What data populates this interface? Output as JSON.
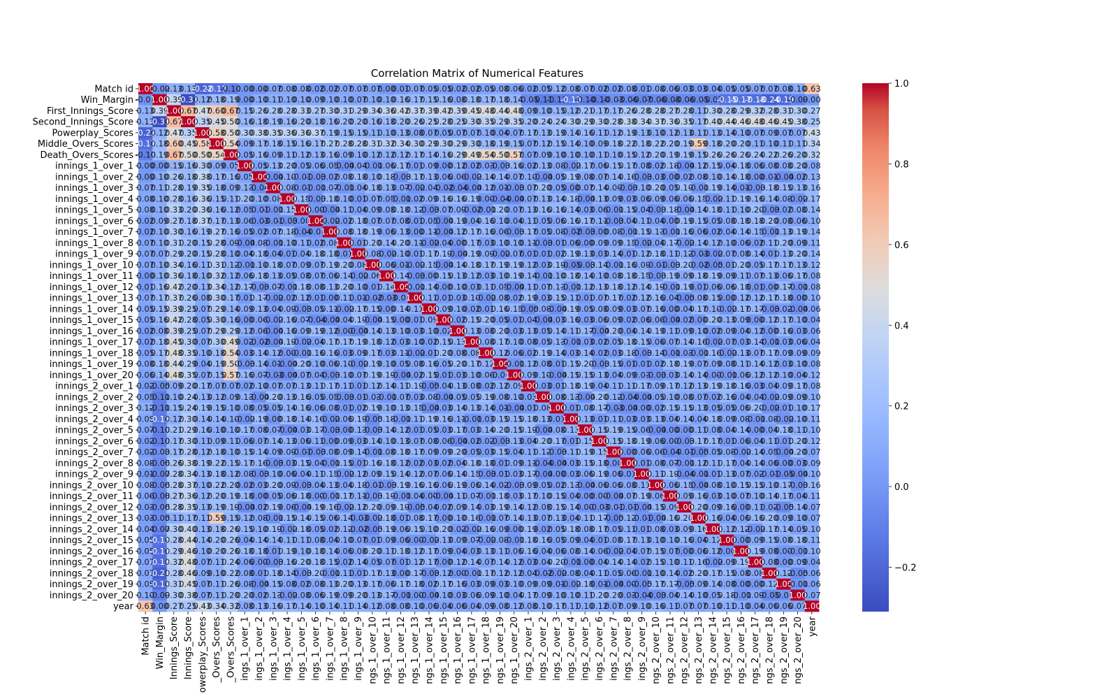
{
  "chart_data": {
    "type": "heatmap",
    "title": "Correlation Matrix of Numerical Features",
    "labels": [
      "Match id",
      "Win_Margin",
      "First_Innings_Score",
      "Second_Innings_Score",
      "Powerplay_Scores",
      "Middle_Overs_Scores",
      "Death_Overs_Scores",
      "innings_1_over_1",
      "innings_1_over_2",
      "innings_1_over_3",
      "innings_1_over_4",
      "innings_1_over_5",
      "innings_1_over_6",
      "innings_1_over_7",
      "innings_1_over_8",
      "innings_1_over_9",
      "innings_1_over_10",
      "innings_1_over_11",
      "innings_1_over_12",
      "innings_1_over_13",
      "innings_1_over_14",
      "innings_1_over_15",
      "innings_1_over_16",
      "innings_1_over_17",
      "innings_1_over_18",
      "innings_1_over_19",
      "innings_1_over_20",
      "innings_2_over_1",
      "innings_2_over_2",
      "innings_2_over_3",
      "innings_2_over_4",
      "innings_2_over_5",
      "innings_2_over_6",
      "innings_2_over_7",
      "innings_2_over_8",
      "innings_2_over_9",
      "innings_2_over_10",
      "innings_2_over_11",
      "innings_2_over_12",
      "innings_2_over_13",
      "innings_2_over_14",
      "innings_2_over_15",
      "innings_2_over_16",
      "innings_2_over_17",
      "innings_2_over_18",
      "innings_2_over_19",
      "innings_2_over_20",
      "year"
    ],
    "x_tick_labels": [
      "Match id",
      "Win_Margin",
      "Innings_Score",
      "Innings_Score",
      "owerplay_Scores",
      "_Overs_Scores",
      "_Overs_Scores",
      "ings_1_over_1",
      "ings_1_over_2",
      "ings_1_over_3",
      "ings_1_over_4",
      "ings_1_over_5",
      "ings_1_over_6",
      "ings_1_over_7",
      "ings_1_over_8",
      "ings_1_over_9",
      "ngs_1_over_10",
      "ngs_1_over_11",
      "ngs_1_over_12",
      "ngs_1_over_13",
      "ngs_1_over_14",
      "ngs_1_over_15",
      "ngs_1_over_16",
      "ngs_1_over_17",
      "ngs_1_over_18",
      "ngs_1_over_19",
      "ngs_1_over_20",
      "ings_2_over_1",
      "ings_2_over_2",
      "ings_2_over_3",
      "ings_2_over_4",
      "ings_2_over_5",
      "ings_2_over_6",
      "ings_2_over_7",
      "ings_2_over_8",
      "ings_2_over_9",
      "ngs_2_over_10",
      "ngs_2_over_11",
      "ngs_2_over_12",
      "ngs_2_over_13",
      "ngs_2_over_14",
      "ngs_2_over_15",
      "ngs_2_over_16",
      "ngs_2_over_17",
      "ngs_2_over_18",
      "ngs_2_over_19",
      "ngs_2_over_20",
      "year"
    ],
    "row_values": {
      "Match id": [
        1.0,
        -0.02,
        0.13,
        0.13,
        -0.22,
        -0.17,
        -0.1,
        0.0,
        -0.0,
        0.07,
        0.08,
        0.08,
        0.02,
        0.02,
        0.07,
        0.07,
        0.07,
        0.0,
        0.01,
        0.07,
        0.05,
        0.05,
        0.02,
        0.02,
        0.05,
        0.08,
        0.06,
        0.02,
        0.05,
        0.12,
        0.08,
        0.07,
        0.02,
        0.02,
        0.08,
        0.01,
        0.08,
        0.06,
        0.03,
        0.03,
        0.04,
        0.05,
        0.05,
        0.07,
        0.07,
        0.08,
        0.1,
        0.63
      ],
      "Win_Margin": [
        -0.02,
        1.0,
        0.39,
        -0.31,
        0.12,
        0.18,
        0.19,
        -0.0,
        0.1,
        0.11,
        0.1,
        0.1,
        0.09,
        0.1,
        0.1,
        0.07,
        0.1,
        0.1,
        0.16,
        0.17,
        0.15,
        0.16,
        0.08,
        0.18,
        0.17,
        0.18,
        0.14,
        -0.05,
        -0.11,
        -0.11,
        -0.13,
        -0.1,
        -0.1,
        -0.03,
        -0.06,
        -0.07,
        -0.06,
        -0.08,
        -0.06,
        -0.05,
        -0.07,
        -0.15,
        -0.17,
        -0.18,
        -0.24,
        -0.19,
        -0.09,
        0.0
      ],
      "First_Innings_Score": [
        0.13,
        0.39,
        1.0,
        0.67,
        0.47,
        0.6,
        0.67,
        0.15,
        0.26,
        0.28,
        0.28,
        0.33,
        0.27,
        0.3,
        0.31,
        0.29,
        0.34,
        0.36,
        0.42,
        0.37,
        0.39,
        0.42,
        0.39,
        0.45,
        0.48,
        0.44,
        0.48,
        0.09,
        0.1,
        0.15,
        0.12,
        0.21,
        0.17,
        0.17,
        0.26,
        0.28,
        0.28,
        0.27,
        0.28,
        0.11,
        0.3,
        0.28,
        0.29,
        0.32,
        0.28,
        0.31,
        0.3,
        0.27
      ],
      "Second_Innings_Score": [
        0.13,
        -0.31,
        0.67,
        1.0,
        0.35,
        0.45,
        0.5,
        0.16,
        0.18,
        0.19,
        0.16,
        0.2,
        0.18,
        0.16,
        0.2,
        0.2,
        0.16,
        0.18,
        0.2,
        0.26,
        0.25,
        0.28,
        0.25,
        0.3,
        0.35,
        0.29,
        0.35,
        0.2,
        0.24,
        0.24,
        0.3,
        0.29,
        0.3,
        0.28,
        0.38,
        0.34,
        0.37,
        0.36,
        0.35,
        0.17,
        0.4,
        0.44,
        0.46,
        0.48,
        0.46,
        0.45,
        0.38,
        0.25
      ],
      "Powerplay_Scores": [
        -0.22,
        0.12,
        0.47,
        0.35,
        1.0,
        0.58,
        0.5,
        0.3,
        0.38,
        0.35,
        0.36,
        0.36,
        0.37,
        0.19,
        0.15,
        0.15,
        0.11,
        0.1,
        0.13,
        0.08,
        0.07,
        0.05,
        0.07,
        0.07,
        0.1,
        0.04,
        0.07,
        0.17,
        0.13,
        0.19,
        0.14,
        0.16,
        0.11,
        0.12,
        0.19,
        0.13,
        0.1,
        0.12,
        0.13,
        0.11,
        0.13,
        0.14,
        0.1,
        0.07,
        0.09,
        0.07,
        0.07,
        0.43
      ],
      "Middle_Overs_Scores": [
        -0.17,
        0.18,
        0.6,
        0.45,
        0.58,
        1.0,
        0.54,
        0.09,
        0.17,
        0.18,
        0.15,
        0.16,
        0.17,
        0.27,
        0.28,
        0.28,
        0.31,
        0.32,
        0.34,
        0.3,
        0.29,
        0.3,
        0.29,
        0.3,
        0.18,
        0.19,
        0.15,
        0.07,
        0.12,
        0.15,
        0.14,
        0.1,
        0.09,
        0.18,
        0.22,
        0.18,
        0.22,
        0.2,
        0.19,
        0.59,
        0.18,
        0.2,
        0.2,
        0.11,
        0.1,
        0.11,
        0.11,
        0.34
      ],
      "Death_Overs_Scores": [
        -0.1,
        0.19,
        0.67,
        0.5,
        0.5,
        0.54,
        1.0,
        0.05,
        0.16,
        0.09,
        0.11,
        0.12,
        0.13,
        0.16,
        0.09,
        0.1,
        0.12,
        0.12,
        0.12,
        0.17,
        0.14,
        0.16,
        0.29,
        0.49,
        0.54,
        0.5,
        0.57,
        0.07,
        0.09,
        0.1,
        0.1,
        0.1,
        0.11,
        0.1,
        0.15,
        0.12,
        0.2,
        0.19,
        0.19,
        0.15,
        0.26,
        0.26,
        0.26,
        0.24,
        0.22,
        0.26,
        0.2,
        0.32
      ]
    },
    "diagonal_value": 1.0,
    "last_row_values": [
      0.63,
      0.0,
      0.27,
      0.25,
      0.43,
      0.34,
      0.32,
      0.08,
      0.13,
      0.16,
      0.17,
      0.14,
      0.1,
      0.14,
      0.11,
      0.14,
      0.12,
      0.08,
      0.08,
      0.1,
      0.06,
      0.04,
      0.06,
      0.04,
      0.09,
      0.08,
      0.12,
      0.08,
      0.1,
      0.17,
      0.11,
      0.1,
      0.12,
      0.07,
      0.09,
      0.1,
      0.16,
      0.11,
      0.07,
      0.07,
      0.1,
      0.11,
      0.1,
      0.04,
      0.06,
      0.06,
      0.07,
      1.0
    ],
    "typical_off_diagonal_range": [
      -0.05,
      0.2
    ],
    "colorbar": {
      "colormap": "coolwarm",
      "min": -0.31,
      "max": 1.0,
      "ticks": [
        "1.0",
        "0.8",
        "0.6",
        "0.4",
        "0.2",
        "0.0",
        "−0.2"
      ]
    },
    "annotations": "each cell shows its value to 2 decimals"
  }
}
